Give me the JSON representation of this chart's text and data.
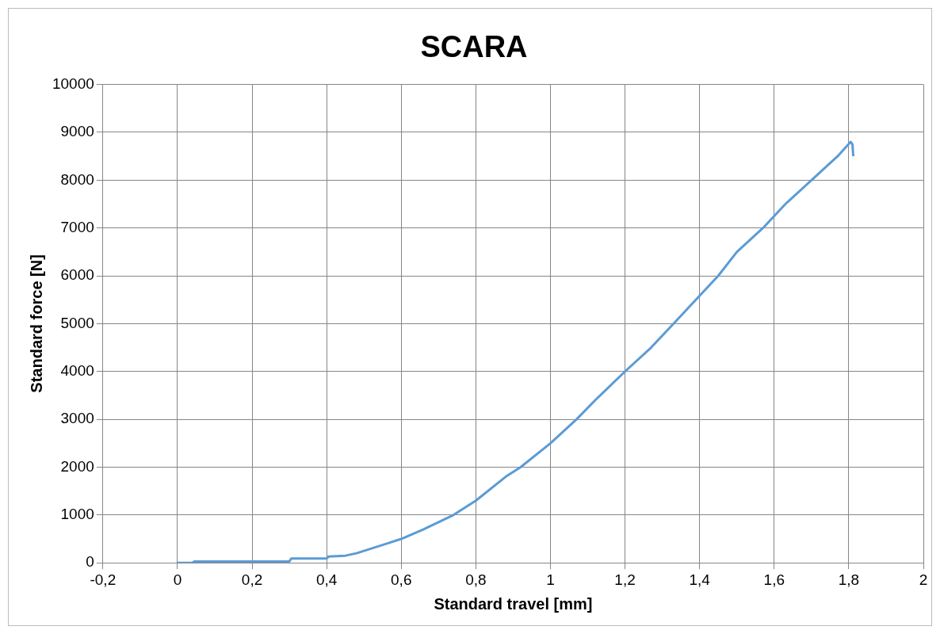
{
  "chart_data": {
    "type": "line",
    "title": "SCARA",
    "xlabel": "Standard travel [mm]",
    "ylabel": "Standard force [N]",
    "series": [
      {
        "color": "#5b9bd5",
        "x": [
          0,
          0.04,
          0.045,
          0.3,
          0.305,
          0.4,
          0.405,
          0.45,
          0.48,
          0.52,
          0.56,
          0.6,
          0.66,
          0.74,
          0.8,
          0.88,
          0.92,
          1.0,
          1.07,
          1.12,
          1.2,
          1.27,
          1.33,
          1.39,
          1.45,
          1.5,
          1.57,
          1.63,
          1.7,
          1.77,
          1.805,
          1.81,
          1.812
        ],
        "values": [
          0,
          0,
          30,
          30,
          90,
          90,
          130,
          150,
          200,
          300,
          400,
          500,
          700,
          1000,
          1300,
          1800,
          2000,
          2500,
          3000,
          3400,
          4000,
          4500,
          5000,
          5500,
          6000,
          6500,
          7000,
          7500,
          8000,
          8500,
          8800,
          8750,
          8500
        ]
      }
    ],
    "xlim": [
      -0.2,
      2
    ],
    "xticks": [
      {
        "value": -0.2,
        "label": "-0,2"
      },
      0,
      {
        "value": 0.2,
        "label": "0,2"
      },
      {
        "value": 0.4,
        "label": "0,4"
      },
      {
        "value": 0.6,
        "label": "0,6"
      },
      {
        "value": 0.8,
        "label": "0,8"
      },
      1,
      {
        "value": 1.2,
        "label": "1,2"
      },
      {
        "value": 1.4,
        "label": "1,4"
      },
      {
        "value": 1.6,
        "label": "1,6"
      },
      {
        "value": 1.8,
        "label": "1,8"
      },
      2
    ],
    "ylim": [
      0,
      10000
    ],
    "yticks": [
      0,
      1000,
      2000,
      3000,
      4000,
      5000,
      6000,
      7000,
      8000,
      9000,
      10000
    ],
    "grid": true,
    "legend": false,
    "marker": "none",
    "line_style": "solid"
  }
}
